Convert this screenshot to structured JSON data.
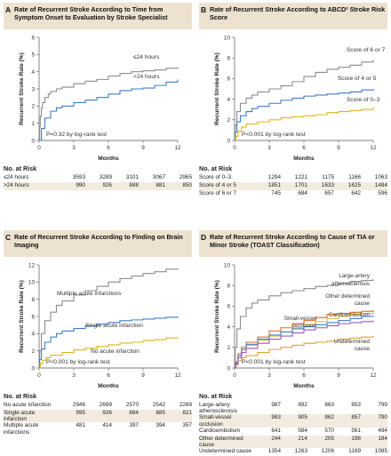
{
  "panels": [
    {
      "letter": "A",
      "title": "Rate of Recurrent Stroke According to Time from Symptom Onset to Evaluation by Stroke Specialist",
      "risk_title": "No. at Risk",
      "risk_rows": [
        {
          "label": "≤24 hours",
          "values": [
            "3593",
            "3289",
            "3101",
            "3067",
            "2965"
          ]
        },
        {
          "label": ">24 hours",
          "values": [
            "990",
            "926",
            "888",
            "881",
            "850"
          ]
        }
      ]
    },
    {
      "letter": "B",
      "title": "Rate of Recurrent Stroke According to ABCD² Stroke Risk Score",
      "risk_title": "No. at Risk",
      "risk_rows": [
        {
          "label": "Score of 0–3",
          "values": [
            "1294",
            "1221",
            "1175",
            "1166",
            "1063"
          ]
        },
        {
          "label": "Score of 4 or 5",
          "values": [
            "1851",
            "1701",
            "1633",
            "1625",
            "1484"
          ]
        },
        {
          "label": "Score of 6 or 7",
          "values": [
            "745",
            "684",
            "657",
            "642",
            "596"
          ]
        }
      ]
    },
    {
      "letter": "C",
      "title": "Rate of Recurrent Stroke According to Finding on Brain Imaging",
      "risk_title": "No. at Risk",
      "risk_rows": [
        {
          "label": "No acute infarction",
          "values": [
            "2946",
            "2699",
            "2570",
            "2542",
            "2289"
          ]
        },
        {
          "label": "Single acute infarction",
          "values": [
            "995",
            "926",
            "894",
            "885",
            "821"
          ]
        },
        {
          "label": "Multiple acute infarctions",
          "values": [
            "481",
            "414",
            "397",
            "394",
            "357"
          ]
        }
      ]
    },
    {
      "letter": "D",
      "title": "Rate of Recurrent Stroke According to Cause of TIA or Minor Stroke (TOAST Classification)",
      "risk_title": "No. at Risk",
      "risk_rows": [
        {
          "label": "Large-artery atherosclerosis",
          "values": [
            "987",
            "892",
            "863",
            "853",
            "799"
          ]
        },
        {
          "label": "Small-vessel occlusion",
          "values": [
            "983",
            "905",
            "862",
            "857",
            "790"
          ]
        },
        {
          "label": "Cardioembolism",
          "values": [
            "641",
            "584",
            "570",
            "561",
            "494"
          ]
        },
        {
          "label": "Other determined cause",
          "values": [
            "244",
            "214",
            "205",
            "198",
            "184"
          ]
        },
        {
          "label": "Undetermined cause",
          "values": [
            "1354",
            "1263",
            "1206",
            "1199",
            "1085"
          ]
        }
      ]
    }
  ],
  "chart_data": [
    {
      "type": "line",
      "title": "Rate of Recurrent Stroke According to Time from Symptom Onset to Evaluation by Stroke Specialist",
      "xlabel": "Months",
      "ylabel": "Recurrent Stroke Rate (%)",
      "xlim": [
        0,
        12
      ],
      "ylim": [
        0,
        6
      ],
      "xticks": [
        "0",
        "3",
        "6",
        "9",
        "12"
      ],
      "yticks": [
        "0",
        "1",
        "2",
        "3",
        "4",
        "5",
        "6"
      ],
      "annotation": "P=0.32 by log-rank test",
      "series": [
        {
          "name": "≤24 hours",
          "color": "#8c8c8c",
          "x": [
            0,
            0.05,
            0.1,
            0.2,
            0.3,
            0.5,
            0.8,
            1,
            1.5,
            2,
            3,
            4,
            5,
            6,
            7,
            8,
            9,
            10,
            11,
            12
          ],
          "y": [
            0,
            0.8,
            1.4,
            1.9,
            2.2,
            2.5,
            2.7,
            2.85,
            3.0,
            3.1,
            3.3,
            3.45,
            3.55,
            3.75,
            3.9,
            4.0,
            4.05,
            4.1,
            4.2,
            4.25
          ]
        },
        {
          "name": ">24 hours",
          "color": "#3d7cc9",
          "x": [
            0,
            0.2,
            0.5,
            1,
            1.5,
            2,
            3,
            4,
            5,
            6,
            7,
            8,
            9,
            10,
            11,
            12
          ],
          "y": [
            0,
            0.7,
            1.3,
            1.7,
            1.9,
            2.0,
            2.2,
            2.35,
            2.5,
            2.7,
            2.9,
            3.0,
            3.05,
            3.2,
            3.4,
            3.55
          ]
        }
      ]
    },
    {
      "type": "line",
      "title": "Rate of Recurrent Stroke According to ABCD² Stroke Risk Score",
      "xlabel": "Months",
      "ylabel": "Recurrent Stroke Rate (%)",
      "xlim": [
        0,
        12
      ],
      "ylim": [
        0,
        10
      ],
      "xticks": [
        "0",
        "3",
        "6",
        "9",
        "12"
      ],
      "yticks": [
        "0",
        "2",
        "4",
        "6",
        "8",
        "10"
      ],
      "annotation": "P<0.001 by log-rank test",
      "series": [
        {
          "name": "Score of 6 or 7",
          "color": "#8c8c8c",
          "x": [
            0,
            0.05,
            0.2,
            0.5,
            1,
            1.5,
            2,
            3,
            4,
            5,
            6,
            7,
            8,
            9,
            10,
            11,
            12
          ],
          "y": [
            0,
            1.5,
            2.8,
            3.6,
            4.1,
            4.4,
            4.7,
            5.0,
            5.3,
            5.7,
            6.2,
            6.6,
            6.9,
            7.1,
            7.3,
            7.6,
            7.8
          ]
        },
        {
          "name": "Score of 4 or 5",
          "color": "#3d7cc9",
          "x": [
            0,
            0.05,
            0.2,
            0.5,
            1,
            1.5,
            2,
            3,
            4,
            5,
            6,
            7,
            8,
            9,
            10,
            11,
            12
          ],
          "y": [
            0,
            0.8,
            1.8,
            2.4,
            2.8,
            3.1,
            3.3,
            3.6,
            3.9,
            4.1,
            4.3,
            4.4,
            4.5,
            4.6,
            4.7,
            4.9,
            5.0
          ]
        },
        {
          "name": "Score of 0–3",
          "color": "#e3b31c",
          "x": [
            0,
            0.1,
            0.3,
            0.6,
            1,
            2,
            3,
            4,
            5,
            6,
            7,
            8,
            9,
            10,
            11,
            12
          ],
          "y": [
            0,
            0.4,
            0.9,
            1.3,
            1.6,
            1.8,
            2.0,
            2.2,
            2.3,
            2.4,
            2.5,
            2.7,
            2.8,
            2.9,
            3.0,
            3.2
          ]
        }
      ]
    },
    {
      "type": "line",
      "title": "Rate of Recurrent Stroke According to Finding on Brain Imaging",
      "xlabel": "Months",
      "ylabel": "Recurrent Stroke Rate (%)",
      "xlim": [
        0,
        12
      ],
      "ylim": [
        0,
        12
      ],
      "xticks": [
        "0",
        "3",
        "6",
        "9",
        "12"
      ],
      "yticks": [
        "0",
        "2",
        "4",
        "6",
        "8",
        "10",
        "12"
      ],
      "annotation": "P<0.001 by log-rank test",
      "series": [
        {
          "name": "Multiple acute infarctions",
          "color": "#8c8c8c",
          "x": [
            0,
            0.05,
            0.2,
            0.5,
            1,
            1.5,
            2,
            3,
            4,
            5,
            6,
            7,
            8,
            9,
            10,
            11,
            12
          ],
          "y": [
            0,
            2.0,
            4.0,
            5.5,
            6.5,
            7.3,
            7.8,
            8.5,
            9.0,
            9.5,
            10.0,
            10.4,
            10.7,
            11.0,
            11.2,
            11.5,
            11.6
          ]
        },
        {
          "name": "Single acute infarction",
          "color": "#3d7cc9",
          "x": [
            0,
            0.05,
            0.2,
            0.5,
            1,
            1.5,
            2,
            3,
            4,
            5,
            6,
            7,
            8,
            9,
            10,
            11,
            12
          ],
          "y": [
            0,
            1.0,
            2.2,
            3.0,
            3.6,
            4.0,
            4.3,
            4.6,
            4.9,
            5.1,
            5.3,
            5.5,
            5.6,
            5.7,
            5.8,
            5.9,
            6.0
          ]
        },
        {
          "name": "No acute infarction",
          "color": "#e3b31c",
          "x": [
            0,
            0.1,
            0.3,
            0.6,
            1,
            2,
            3,
            4,
            5,
            6,
            7,
            8,
            9,
            10,
            11,
            12
          ],
          "y": [
            0,
            0.5,
            0.9,
            1.2,
            1.5,
            1.8,
            2.1,
            2.3,
            2.5,
            2.7,
            2.9,
            3.0,
            3.2,
            3.3,
            3.5,
            3.6
          ]
        }
      ]
    },
    {
      "type": "line",
      "title": "Rate of Recurrent Stroke According to Cause of TIA or Minor Stroke (TOAST Classification)",
      "xlabel": "Months",
      "ylabel": "Recurrent Stroke Rate (%)",
      "xlim": [
        0,
        12
      ],
      "ylim": [
        0,
        10
      ],
      "xticks": [
        "0",
        "3",
        "6",
        "9",
        "12"
      ],
      "yticks": [
        "0",
        "2",
        "4",
        "6",
        "8",
        "10"
      ],
      "annotation": "P<0.001 by log-rank test",
      "series": [
        {
          "name": "Large-artery atherosclerosis",
          "color": "#8c8c8c",
          "x": [
            0,
            0.05,
            0.2,
            0.5,
            1,
            1.5,
            2,
            3,
            4,
            5,
            6,
            7,
            8,
            9,
            10,
            11,
            12
          ],
          "y": [
            0,
            2.0,
            3.8,
            5.0,
            5.8,
            6.3,
            6.6,
            7.0,
            7.3,
            7.5,
            7.7,
            7.9,
            8.0,
            8.2,
            8.4,
            8.5,
            8.6
          ]
        },
        {
          "name": "Other determined cause",
          "color": "#e06c1e",
          "x": [
            0,
            0.1,
            0.3,
            0.6,
            1,
            2,
            3,
            4,
            5,
            6,
            7,
            8,
            9,
            10,
            11,
            12
          ],
          "y": [
            0,
            0.6,
            1.4,
            2.0,
            2.5,
            3.0,
            3.6,
            3.9,
            4.3,
            4.6,
            4.9,
            5.2,
            5.3,
            5.4,
            5.5,
            5.6
          ]
        },
        {
          "name": "Cardioembolism",
          "color": "#d8c13a",
          "x": [
            0,
            0.1,
            0.3,
            0.6,
            1,
            2,
            3,
            4,
            5,
            6,
            7,
            8,
            9,
            10,
            11,
            12
          ],
          "y": [
            0,
            0.5,
            1.2,
            1.8,
            2.2,
            2.7,
            3.1,
            3.5,
            3.9,
            4.2,
            4.5,
            4.8,
            5.0,
            5.2,
            5.3,
            5.4
          ]
        },
        {
          "name": "Small-vessel occlusion",
          "color": "#3d7cc9",
          "x": [
            0,
            0.1,
            0.3,
            0.6,
            1,
            2,
            3,
            4,
            5,
            6,
            7,
            8,
            9,
            10,
            11,
            12
          ],
          "y": [
            0,
            0.5,
            1.2,
            1.8,
            2.3,
            2.8,
            3.2,
            3.5,
            3.8,
            4.0,
            4.2,
            4.4,
            4.6,
            4.8,
            5.0,
            5.1
          ]
        },
        {
          "name": "Undetermined cause",
          "color": "#e0a32a",
          "x": [
            0,
            0.1,
            0.3,
            0.6,
            1,
            2,
            3,
            4,
            5,
            6,
            7,
            8,
            9,
            10,
            11,
            12
          ],
          "y": [
            0,
            0.3,
            0.7,
            1.0,
            1.2,
            1.5,
            1.8,
            2.0,
            2.2,
            2.4,
            2.5,
            2.6,
            2.8,
            2.9,
            3.0,
            3.1
          ]
        },
        {
          "name": "",
          "color": "#9b59b6",
          "x": [
            0,
            0.1,
            0.3,
            0.6,
            1,
            2,
            3,
            4,
            5,
            6,
            7,
            8,
            9,
            10,
            11,
            12
          ],
          "y": [
            0,
            0.4,
            1.0,
            1.5,
            1.9,
            2.4,
            2.8,
            3.1,
            3.4,
            3.7,
            3.9,
            4.1,
            4.3,
            4.4,
            4.5,
            4.6
          ]
        }
      ],
      "labels": [
        {
          "text": "Large-artery",
          "series": 0
        },
        {
          "text": "atherosclerosis",
          "series": 0
        },
        {
          "text": "Other determined",
          "series": 1
        },
        {
          "text": "cause",
          "series": 1
        },
        {
          "text": "Cardioembolism",
          "series": 2
        },
        {
          "text": "Small-vessel",
          "series": 3
        },
        {
          "text": "occlusion",
          "series": 3
        },
        {
          "text": "Undetermined",
          "series": 4
        },
        {
          "text": "cause",
          "series": 4
        }
      ]
    }
  ]
}
